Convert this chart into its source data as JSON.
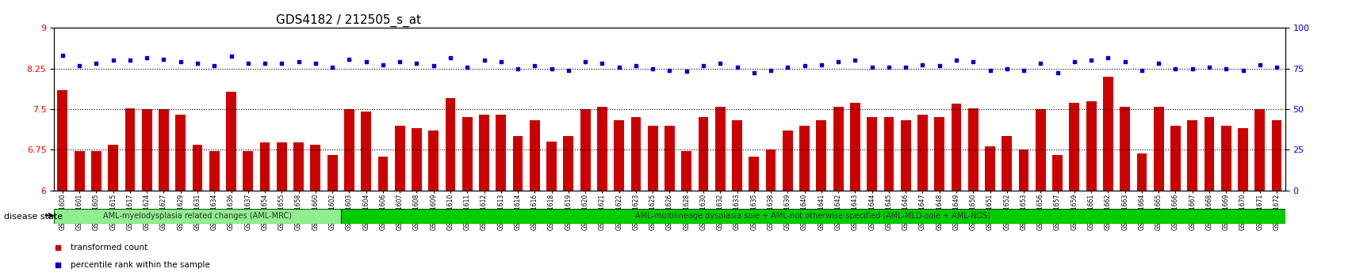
{
  "title": "GDS4182 / 212505_s_at",
  "samples": [
    "GSM531600",
    "GSM531601",
    "GSM531605",
    "GSM531615",
    "GSM531617",
    "GSM531624",
    "GSM531627",
    "GSM531629",
    "GSM531631",
    "GSM531634",
    "GSM531636",
    "GSM531637",
    "GSM531654",
    "GSM531655",
    "GSM531658",
    "GSM531660",
    "GSM531602",
    "GSM531603",
    "GSM531604",
    "GSM531606",
    "GSM531607",
    "GSM531608",
    "GSM531609",
    "GSM531610",
    "GSM531611",
    "GSM531612",
    "GSM531613",
    "GSM531614",
    "GSM531616",
    "GSM531618",
    "GSM531619",
    "GSM531620",
    "GSM531621",
    "GSM531622",
    "GSM531623",
    "GSM531625",
    "GSM531626",
    "GSM531628",
    "GSM531630",
    "GSM531632",
    "GSM531633",
    "GSM531635",
    "GSM531638",
    "GSM531639",
    "GSM531640",
    "GSM531641",
    "GSM531642",
    "GSM531643",
    "GSM531644",
    "GSM531645",
    "GSM531646",
    "GSM531647",
    "GSM531648",
    "GSM531649",
    "GSM531650",
    "GSM531651",
    "GSM531652",
    "GSM531653",
    "GSM531656",
    "GSM531657",
    "GSM531659",
    "GSM531661",
    "GSM531662",
    "GSM531663",
    "GSM531664",
    "GSM531665",
    "GSM531666",
    "GSM531667",
    "GSM531668",
    "GSM531669",
    "GSM531670",
    "GSM531671",
    "GSM531672"
  ],
  "bar_values": [
    7.85,
    6.72,
    6.72,
    6.85,
    7.52,
    7.5,
    7.5,
    7.4,
    6.85,
    6.72,
    7.82,
    6.72,
    6.88,
    6.88,
    6.88,
    6.85,
    6.65,
    7.5,
    7.45,
    6.63,
    7.2,
    7.15,
    7.1,
    7.7,
    7.35,
    7.4,
    7.4,
    7.0,
    7.3,
    6.9,
    7.0,
    7.5,
    7.55,
    7.3,
    7.35,
    7.2,
    7.2,
    6.72,
    7.35,
    7.55,
    7.3,
    6.62,
    6.75,
    7.1,
    7.2,
    7.3,
    7.55,
    7.62,
    7.35,
    7.35,
    7.3,
    7.4,
    7.35,
    7.6,
    7.52,
    6.82,
    7.0,
    6.75,
    7.5,
    6.65,
    7.62,
    7.65,
    8.1,
    7.55,
    6.68,
    7.55,
    7.2,
    7.3,
    7.35,
    7.2,
    7.15,
    7.5,
    7.3
  ],
  "percentile_values": [
    8.5,
    8.3,
    8.35,
    8.4,
    8.4,
    8.45,
    8.42,
    8.38,
    8.35,
    8.3,
    8.48,
    8.35,
    8.35,
    8.35,
    8.38,
    8.35,
    8.28,
    8.42,
    8.38,
    8.32,
    8.38,
    8.35,
    8.3,
    8.45,
    8.28,
    8.4,
    8.38,
    8.25,
    8.3,
    8.25,
    8.22,
    8.38,
    8.35,
    8.28,
    8.3,
    8.25,
    8.22,
    8.2,
    8.3,
    8.35,
    8.28,
    8.18,
    8.22,
    8.28,
    8.3,
    8.32,
    8.38,
    8.4,
    8.28,
    8.28,
    8.28,
    8.32,
    8.3,
    8.4,
    8.38,
    8.22,
    8.25,
    8.22,
    8.35,
    8.18,
    8.38,
    8.4,
    8.45,
    8.38,
    8.22,
    8.35,
    8.25,
    8.25,
    8.28,
    8.25,
    8.22,
    8.32,
    8.28
  ],
  "group1_count": 17,
  "group1_label": "AML-myelodysplasia related changes (AML-MRC)",
  "group2_label": "AML-multilineage dysplasia sole + AML-not otherwise specified (AML-MLD-sole + AML-NOS)",
  "group1_color": "#90ee90",
  "group2_color": "#00cc00",
  "bar_color": "#cc0000",
  "dot_color": "#0000cc",
  "yticks_left": [
    6.0,
    6.75,
    7.5,
    8.25,
    9.0
  ],
  "yticks_right": [
    0,
    25,
    50,
    75,
    100
  ],
  "ylim": [
    6.0,
    9.0
  ],
  "hlines": [
    6.75,
    7.5,
    8.25
  ],
  "legend_bar_label": "transformed count",
  "legend_dot_label": "percentile rank within the sample",
  "disease_state_label": "disease state",
  "background_color": "#ffffff",
  "xticklabel_size": 5.5,
  "title_fontsize": 11
}
